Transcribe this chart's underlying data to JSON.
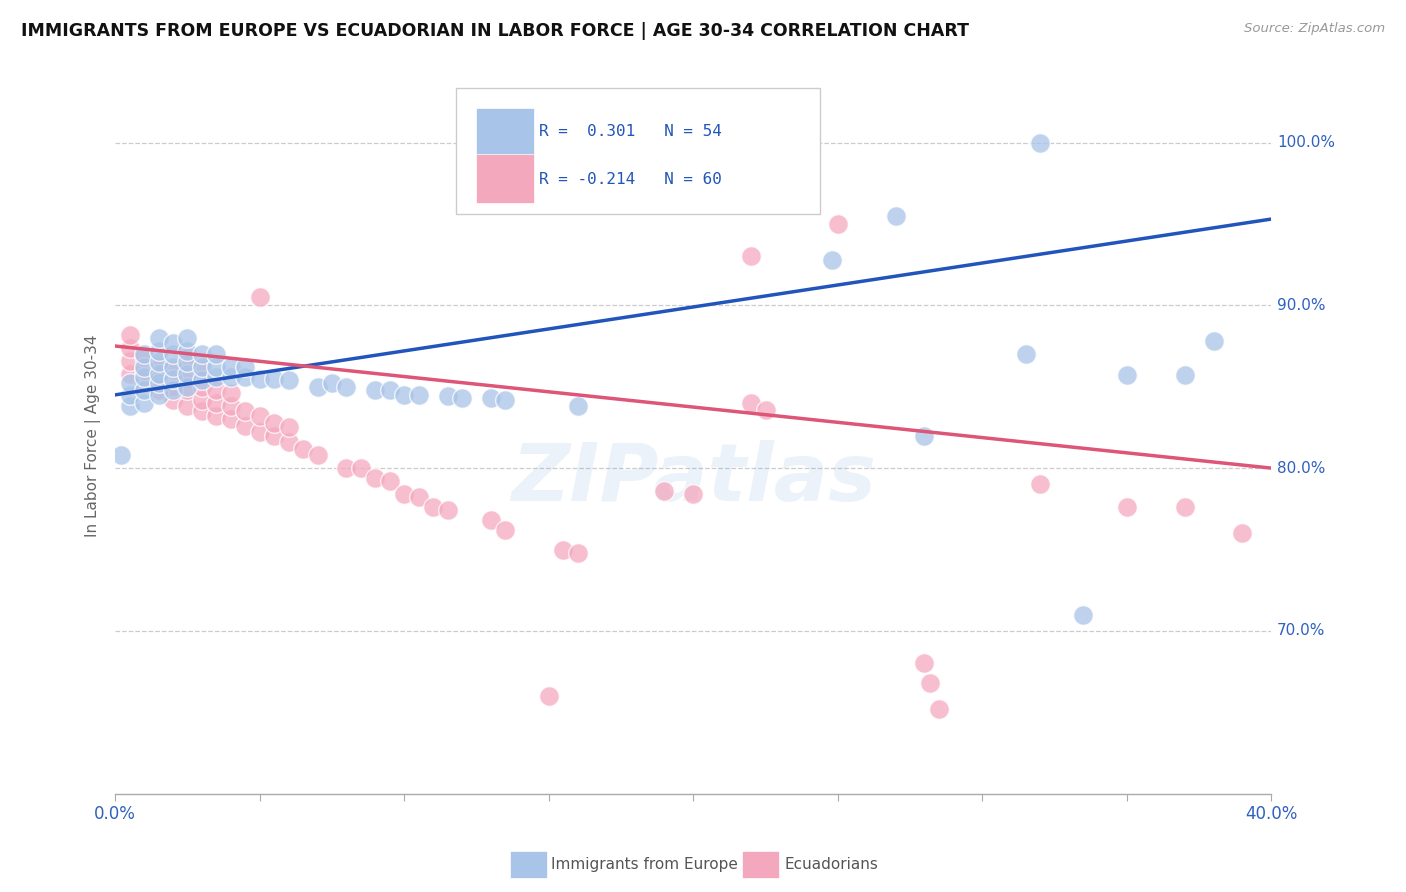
{
  "title": "IMMIGRANTS FROM EUROPE VS ECUADORIAN IN LABOR FORCE | AGE 30-34 CORRELATION CHART",
  "source": "Source: ZipAtlas.com",
  "ylabel": "In Labor Force | Age 30-34",
  "ylabel_right_labels": [
    "100.0%",
    "90.0%",
    "80.0%",
    "70.0%"
  ],
  "ylabel_right_values": [
    1.0,
    0.9,
    0.8,
    0.7
  ],
  "xlim": [
    0.0,
    0.4
  ],
  "ylim": [
    0.6,
    1.04
  ],
  "blue_color": "#a8c4e8",
  "pink_color": "#f4a8be",
  "blue_line_color": "#2255bb",
  "pink_line_color": "#dd5577",
  "watermark": "ZIPatlas",
  "blue_scatter": [
    [
      0.005,
      0.838
    ],
    [
      0.005,
      0.845
    ],
    [
      0.005,
      0.852
    ],
    [
      0.01,
      0.84
    ],
    [
      0.01,
      0.848
    ],
    [
      0.01,
      0.856
    ],
    [
      0.01,
      0.862
    ],
    [
      0.01,
      0.87
    ],
    [
      0.015,
      0.845
    ],
    [
      0.015,
      0.852
    ],
    [
      0.015,
      0.858
    ],
    [
      0.015,
      0.865
    ],
    [
      0.015,
      0.872
    ],
    [
      0.015,
      0.88
    ],
    [
      0.02,
      0.848
    ],
    [
      0.02,
      0.855
    ],
    [
      0.02,
      0.862
    ],
    [
      0.02,
      0.87
    ],
    [
      0.02,
      0.877
    ],
    [
      0.025,
      0.85
    ],
    [
      0.025,
      0.858
    ],
    [
      0.025,
      0.865
    ],
    [
      0.025,
      0.872
    ],
    [
      0.025,
      0.88
    ],
    [
      0.03,
      0.854
    ],
    [
      0.03,
      0.862
    ],
    [
      0.03,
      0.87
    ],
    [
      0.035,
      0.856
    ],
    [
      0.035,
      0.862
    ],
    [
      0.035,
      0.87
    ],
    [
      0.04,
      0.856
    ],
    [
      0.04,
      0.862
    ],
    [
      0.045,
      0.856
    ],
    [
      0.045,
      0.862
    ],
    [
      0.05,
      0.855
    ],
    [
      0.055,
      0.855
    ],
    [
      0.06,
      0.854
    ],
    [
      0.07,
      0.85
    ],
    [
      0.075,
      0.852
    ],
    [
      0.08,
      0.85
    ],
    [
      0.09,
      0.848
    ],
    [
      0.095,
      0.848
    ],
    [
      0.1,
      0.845
    ],
    [
      0.105,
      0.845
    ],
    [
      0.115,
      0.844
    ],
    [
      0.12,
      0.843
    ],
    [
      0.13,
      0.843
    ],
    [
      0.135,
      0.842
    ],
    [
      0.16,
      0.838
    ],
    [
      0.27,
      0.955
    ],
    [
      0.28,
      0.82
    ],
    [
      0.315,
      0.87
    ],
    [
      0.32,
      1.0
    ],
    [
      0.335,
      0.71
    ],
    [
      0.38,
      0.878
    ],
    [
      0.002,
      0.808
    ],
    [
      0.248,
      0.928
    ],
    [
      0.35,
      0.857
    ],
    [
      0.37,
      0.857
    ]
  ],
  "pink_scatter": [
    [
      0.005,
      0.858
    ],
    [
      0.005,
      0.866
    ],
    [
      0.005,
      0.874
    ],
    [
      0.005,
      0.882
    ],
    [
      0.01,
      0.852
    ],
    [
      0.01,
      0.86
    ],
    [
      0.01,
      0.868
    ],
    [
      0.015,
      0.848
    ],
    [
      0.015,
      0.854
    ],
    [
      0.015,
      0.862
    ],
    [
      0.02,
      0.842
    ],
    [
      0.02,
      0.85
    ],
    [
      0.02,
      0.86
    ],
    [
      0.025,
      0.838
    ],
    [
      0.025,
      0.848
    ],
    [
      0.025,
      0.858
    ],
    [
      0.025,
      0.868
    ],
    [
      0.03,
      0.835
    ],
    [
      0.03,
      0.842
    ],
    [
      0.03,
      0.85
    ],
    [
      0.03,
      0.86
    ],
    [
      0.035,
      0.832
    ],
    [
      0.035,
      0.84
    ],
    [
      0.035,
      0.848
    ],
    [
      0.04,
      0.83
    ],
    [
      0.04,
      0.838
    ],
    [
      0.04,
      0.846
    ],
    [
      0.045,
      0.826
    ],
    [
      0.045,
      0.835
    ],
    [
      0.05,
      0.822
    ],
    [
      0.05,
      0.832
    ],
    [
      0.055,
      0.82
    ],
    [
      0.055,
      0.828
    ],
    [
      0.06,
      0.816
    ],
    [
      0.06,
      0.825
    ],
    [
      0.065,
      0.812
    ],
    [
      0.07,
      0.808
    ],
    [
      0.08,
      0.8
    ],
    [
      0.085,
      0.8
    ],
    [
      0.09,
      0.794
    ],
    [
      0.095,
      0.792
    ],
    [
      0.1,
      0.784
    ],
    [
      0.105,
      0.782
    ],
    [
      0.11,
      0.776
    ],
    [
      0.115,
      0.774
    ],
    [
      0.13,
      0.768
    ],
    [
      0.135,
      0.762
    ],
    [
      0.155,
      0.75
    ],
    [
      0.16,
      0.748
    ],
    [
      0.19,
      0.786
    ],
    [
      0.2,
      0.784
    ],
    [
      0.22,
      0.84
    ],
    [
      0.225,
      0.836
    ],
    [
      0.25,
      0.95
    ],
    [
      0.28,
      0.68
    ],
    [
      0.285,
      0.652
    ],
    [
      0.32,
      0.79
    ],
    [
      0.35,
      0.776
    ],
    [
      0.37,
      0.776
    ],
    [
      0.39,
      0.76
    ],
    [
      0.05,
      0.905
    ],
    [
      0.22,
      0.93
    ],
    [
      0.15,
      0.66
    ],
    [
      0.282,
      0.668
    ]
  ]
}
